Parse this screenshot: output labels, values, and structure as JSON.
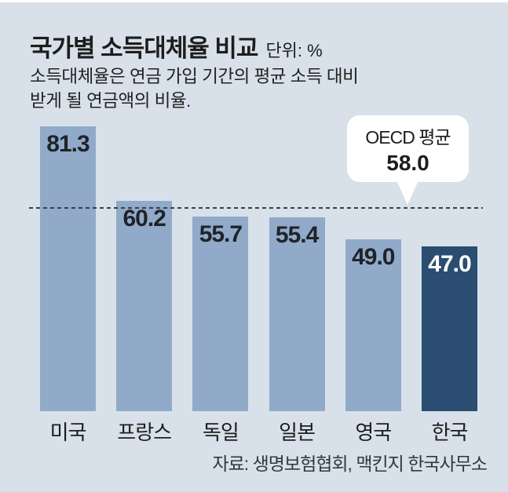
{
  "header": {
    "title": "국가별 소득대체율 비교",
    "unit_label": "단위: %",
    "subtitle": "소득대체율은 연금 가입 기간의 평균 소득 대비\n받게 될 연금액의 비율."
  },
  "callout": {
    "label": "OECD 평균",
    "value": "58.0"
  },
  "footer": {
    "source": "자료: 생명보험협회, 맥킨지 한국사무소"
  },
  "colors": {
    "background": "#d8e1e9",
    "bar": "#91aac9",
    "bar_highlight": "#2a4d71",
    "value_text": "#1f2328",
    "highlight_value_text": "#ffffff",
    "dash_line": "#3a3f44",
    "callout_background": "#ffffff",
    "text": "#1d1d1d"
  },
  "chart_data": {
    "type": "bar",
    "title": "국가별 소득대체율 비교",
    "unit": "%",
    "categories": [
      "미국",
      "프랑스",
      "독일",
      "일본",
      "영국",
      "한국"
    ],
    "values": [
      81.3,
      60.2,
      55.7,
      55.4,
      49.0,
      47.0
    ],
    "value_labels": [
      "81.3",
      "60.2",
      "55.7",
      "55.4",
      "49.0",
      "47.0"
    ],
    "highlight_index": 5,
    "highlight_category": "한국",
    "reference_line": {
      "label": "OECD 평균",
      "value": 58.0,
      "style": "dashed"
    },
    "ylim": [
      0,
      100
    ],
    "grid": false,
    "legend": false,
    "value_labels_position": "inside-top"
  }
}
